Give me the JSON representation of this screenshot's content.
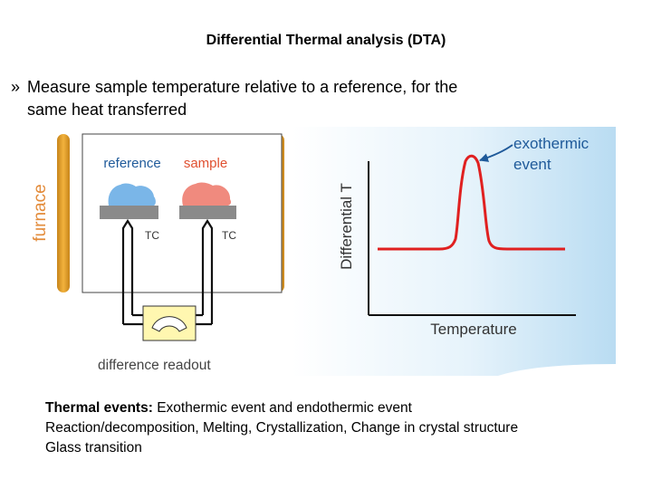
{
  "slide": {
    "title": "Differential Thermal analysis (DTA)",
    "bullet": {
      "marker": "»",
      "line1": "Measure sample temperature relative to a reference, for the",
      "line2": "same heat transferred"
    },
    "thermal_events": {
      "heading": "Thermal events:",
      "line1_rest": " Exothermic event and endothermic event",
      "line2": "Reaction/decomposition, Melting, Crystallization, Change in crystal structure",
      "line3": "Glass transition"
    }
  },
  "diagram": {
    "furnace_label": "furnace",
    "reference_label": "reference",
    "sample_label": "sample",
    "tc_label_left": "TC",
    "tc_label_right": "TC",
    "readout_label": "difference readout",
    "plot": {
      "ylabel": "Differential T",
      "xlabel": "Temperature",
      "annotation_line1": "exothermic",
      "annotation_line2": "event"
    },
    "colors": {
      "furnace_bar": "#e8a020",
      "reference_blob": "#7ab6e8",
      "sample_blob": "#f08a7e",
      "pan": "#8a8a8a",
      "curve": "#e02020",
      "label_blue": "#1f5a9a",
      "label_red": "#e05030",
      "furnace_text": "#e38b3a",
      "readout_box": "#fff7b0"
    }
  }
}
